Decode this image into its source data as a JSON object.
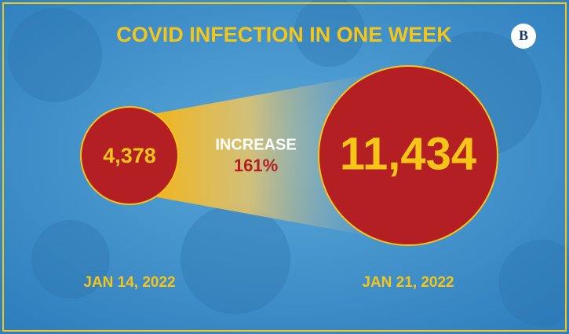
{
  "title": "COVID INFECTION IN ONE WEEK",
  "logo": "B",
  "before": {
    "value": "4,378",
    "date": "JAN 14, 2022"
  },
  "after": {
    "value": "11,434",
    "date": "JAN 21, 2022"
  },
  "change": {
    "label": "INCREASE",
    "value": "161%"
  }
}
